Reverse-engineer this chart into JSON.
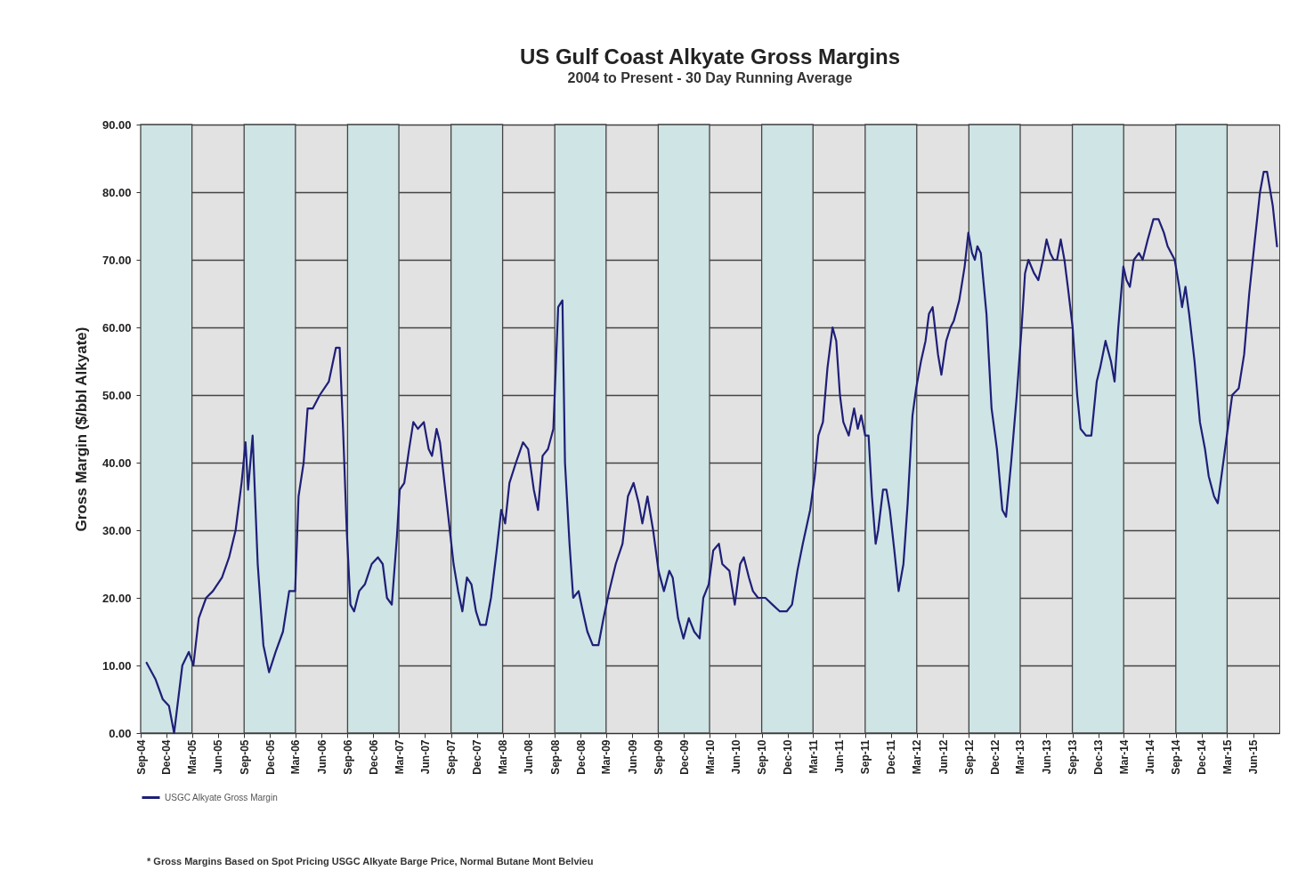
{
  "chart_data": {
    "type": "line",
    "title": "US Gulf Coast Alkyate Gross Margins",
    "subtitle": "2004 to Present - 30 Day Running Average",
    "ylabel": "Gross Margin ($/bbl Alkyate)",
    "annotations": [
      "* Gross Margins Based on Spot Pricing USGC Alkyate  Barge Price, Normal Butane Mont Belvieu"
    ],
    "x": [
      "2004-09-22",
      "2004-10-23",
      "2004-11-18",
      "2004-12-10",
      "2004-12-28",
      "2005-01-26",
      "2005-02-18",
      "2005-03-06",
      "2005-03-25",
      "2005-04-20",
      "2005-05-14",
      "2005-06-15",
      "2005-07-10",
      "2005-08-02",
      "2005-08-23",
      "2005-09-06",
      "2005-09-15",
      "2005-10-01",
      "2005-10-19",
      "2005-11-08",
      "2005-11-28",
      "2005-12-21",
      "2006-01-16",
      "2006-02-07",
      "2006-02-28",
      "2006-03-12",
      "2006-03-30",
      "2006-04-13",
      "2006-05-01",
      "2006-05-26",
      "2006-06-27",
      "2006-07-22",
      "2006-08-04",
      "2006-08-16",
      "2006-08-29",
      "2006-09-11",
      "2006-09-24",
      "2006-10-12",
      "2006-11-01",
      "2006-11-25",
      "2006-12-17",
      "2007-01-03",
      "2007-01-18",
      "2007-02-04",
      "2007-02-22",
      "2007-03-04",
      "2007-03-20",
      "2007-04-06",
      "2007-04-21",
      "2007-05-07",
      "2007-05-28",
      "2007-06-14",
      "2007-06-26",
      "2007-07-12",
      "2007-07-24",
      "2007-08-09",
      "2007-08-25",
      "2007-09-10",
      "2007-09-26",
      "2007-10-11",
      "2007-10-27",
      "2007-11-12",
      "2007-11-28",
      "2007-12-13",
      "2008-01-02",
      "2008-01-20",
      "2008-02-09",
      "2008-02-25",
      "2008-03-10",
      "2008-03-25",
      "2008-04-17",
      "2008-05-12",
      "2008-05-30",
      "2008-06-19",
      "2008-07-04",
      "2008-07-20",
      "2008-08-08",
      "2008-08-27",
      "2008-09-13",
      "2008-09-28",
      "2008-10-07",
      "2008-10-23",
      "2008-11-05",
      "2008-11-24",
      "2008-12-09",
      "2008-12-25",
      "2009-01-13",
      "2009-02-02",
      "2009-02-20",
      "2009-03-12",
      "2009-04-04",
      "2009-04-28",
      "2009-05-17",
      "2009-06-06",
      "2009-06-24",
      "2009-07-07",
      "2009-07-25",
      "2009-08-14",
      "2009-09-02",
      "2009-09-21",
      "2009-10-10",
      "2009-10-22",
      "2009-11-10",
      "2009-11-29",
      "2009-12-18",
      "2010-01-06",
      "2010-01-25",
      "2010-02-07",
      "2010-02-26",
      "2010-03-14",
      "2010-04-03",
      "2010-04-15",
      "2010-05-10",
      "2010-05-29",
      "2010-06-17",
      "2010-06-30",
      "2010-07-18",
      "2010-08-01",
      "2010-08-19",
      "2010-09-14",
      "2010-10-09",
      "2010-11-04",
      "2010-11-28",
      "2010-12-17",
      "2011-01-05",
      "2011-01-24",
      "2011-02-19",
      "2011-03-07",
      "2011-03-20",
      "2011-04-05",
      "2011-04-21",
      "2011-05-09",
      "2011-05-22",
      "2011-06-04",
      "2011-06-16",
      "2011-07-05",
      "2011-07-24",
      "2011-08-06",
      "2011-08-18",
      "2011-09-01",
      "2011-09-13",
      "2011-09-25",
      "2011-10-08",
      "2011-10-17",
      "2011-11-03",
      "2011-11-15",
      "2011-11-27",
      "2011-12-13",
      "2011-12-28",
      "2012-01-14",
      "2012-01-29",
      "2012-02-15",
      "2012-02-28",
      "2012-03-16",
      "2012-04-01",
      "2012-04-13",
      "2012-04-26",
      "2012-05-15",
      "2012-05-27",
      "2012-06-13",
      "2012-06-28",
      "2012-07-10",
      "2012-07-29",
      "2012-08-17",
      "2012-08-30",
      "2012-09-12",
      "2012-09-22",
      "2012-10-01",
      "2012-10-13",
      "2012-11-02",
      "2012-11-20",
      "2012-12-09",
      "2012-12-28",
      "2013-01-10",
      "2013-01-28",
      "2013-02-17",
      "2013-03-06",
      "2013-03-18",
      "2013-03-30",
      "2013-04-19",
      "2013-05-04",
      "2013-05-20",
      "2013-06-02",
      "2013-06-15",
      "2013-06-27",
      "2013-07-09",
      "2013-07-22",
      "2013-08-04",
      "2013-08-16",
      "2013-09-02",
      "2013-09-18",
      "2013-09-30",
      "2013-10-19",
      "2013-11-07",
      "2013-11-26",
      "2013-12-08",
      "2013-12-27",
      "2014-01-15",
      "2014-01-28",
      "2014-02-10",
      "2014-02-28",
      "2014-03-11",
      "2014-03-23",
      "2014-04-06",
      "2014-04-24",
      "2014-05-07",
      "2014-05-25",
      "2014-06-14",
      "2014-07-02",
      "2014-07-21",
      "2014-08-03",
      "2014-08-28",
      "2014-09-13",
      "2014-09-23",
      "2014-10-05",
      "2014-10-18",
      "2014-11-06",
      "2014-11-25",
      "2014-12-13",
      "2014-12-26",
      "2015-01-14",
      "2015-01-27",
      "2015-02-09",
      "2015-02-28",
      "2015-03-19",
      "2015-04-11",
      "2015-04-30",
      "2015-05-18",
      "2015-06-07",
      "2015-06-25",
      "2015-07-08",
      "2015-07-20",
      "2015-08-09",
      "2015-08-24"
    ],
    "series": [
      {
        "name": "USGC Alkyate Gross Margin",
        "color": "#1f1f78",
        "values": [
          10.4,
          8,
          5,
          4,
          0,
          10,
          12,
          10,
          17,
          20,
          21,
          23,
          26,
          30,
          37,
          43,
          36,
          44,
          25,
          13,
          9,
          12,
          15,
          21,
          21,
          35,
          40,
          48,
          48,
          50,
          52,
          57,
          57,
          45,
          30,
          19,
          18,
          21,
          22,
          25,
          26,
          25,
          20,
          19,
          29,
          36,
          37,
          42,
          46,
          45,
          46,
          42,
          41,
          45,
          43,
          37,
          31,
          25,
          21,
          18,
          23,
          22,
          18,
          16,
          16,
          20,
          27,
          33,
          31,
          37,
          40,
          43,
          42,
          36,
          33,
          41,
          42,
          45,
          63,
          64,
          40,
          28,
          20,
          21,
          18,
          15,
          13,
          13,
          17,
          21,
          25,
          28,
          35,
          37,
          34,
          31,
          35,
          30,
          24,
          21,
          24,
          23,
          17,
          14,
          17,
          15,
          14,
          20,
          22,
          27,
          28,
          25,
          24,
          19,
          25,
          26,
          23,
          21,
          20,
          20,
          19,
          18,
          18,
          19,
          24,
          28,
          33,
          38,
          44,
          46,
          54,
          60,
          58,
          50,
          46,
          44,
          48,
          45,
          47,
          44,
          44,
          35,
          28,
          30,
          36,
          36,
          33,
          27,
          21,
          25,
          34,
          47,
          51,
          55,
          58,
          62,
          63,
          56,
          53,
          58,
          60,
          61,
          64,
          69,
          74,
          71,
          70,
          72,
          71,
          62,
          48,
          42,
          33,
          32,
          40,
          50,
          60,
          68,
          70,
          68,
          67,
          70,
          73,
          71,
          70,
          70,
          73,
          70,
          66,
          60,
          50,
          45,
          44,
          44,
          52,
          54,
          58,
          55,
          52,
          60,
          69,
          67,
          66,
          70,
          71,
          70,
          73,
          76,
          76,
          74,
          72,
          70,
          66,
          63,
          66,
          62,
          55,
          46,
          42,
          38,
          35,
          34,
          38,
          44,
          50,
          51,
          56,
          65,
          73,
          80,
          83,
          83,
          78,
          72
        ]
      }
    ],
    "xlim": [
      "2004-09-01",
      "2015-09-01"
    ],
    "xticks": [
      {
        "value": "2004-09-01",
        "label": "Sep-04"
      },
      {
        "value": "2004-12-01",
        "label": "Dec-04"
      },
      {
        "value": "2005-03-01",
        "label": "Mar-05"
      },
      {
        "value": "2005-06-01",
        "label": "Jun-05"
      },
      {
        "value": "2005-09-01",
        "label": "Sep-05"
      },
      {
        "value": "2005-12-01",
        "label": "Dec-05"
      },
      {
        "value": "2006-03-01",
        "label": "Mar-06"
      },
      {
        "value": "2006-06-01",
        "label": "Jun-06"
      },
      {
        "value": "2006-09-01",
        "label": "Sep-06"
      },
      {
        "value": "2006-12-01",
        "label": "Dec-06"
      },
      {
        "value": "2007-03-01",
        "label": "Mar-07"
      },
      {
        "value": "2007-06-01",
        "label": "Jun-07"
      },
      {
        "value": "2007-09-01",
        "label": "Sep-07"
      },
      {
        "value": "2007-12-01",
        "label": "Dec-07"
      },
      {
        "value": "2008-03-01",
        "label": "Mar-08"
      },
      {
        "value": "2008-06-01",
        "label": "Jun-08"
      },
      {
        "value": "2008-09-01",
        "label": "Sep-08"
      },
      {
        "value": "2008-12-01",
        "label": "Dec-08"
      },
      {
        "value": "2009-03-01",
        "label": "Mar-09"
      },
      {
        "value": "2009-06-01",
        "label": "Jun-09"
      },
      {
        "value": "2009-09-01",
        "label": "Sep-09"
      },
      {
        "value": "2009-12-01",
        "label": "Dec-09"
      },
      {
        "value": "2010-03-01",
        "label": "Mar-10"
      },
      {
        "value": "2010-06-01",
        "label": "Jun-10"
      },
      {
        "value": "2010-09-01",
        "label": "Sep-10"
      },
      {
        "value": "2010-12-01",
        "label": "Dec-10"
      },
      {
        "value": "2011-03-01",
        "label": "Mar-11"
      },
      {
        "value": "2011-06-01",
        "label": "Jun-11"
      },
      {
        "value": "2011-09-01",
        "label": "Sep-11"
      },
      {
        "value": "2011-12-01",
        "label": "Dec-11"
      },
      {
        "value": "2012-03-01",
        "label": "Mar-12"
      },
      {
        "value": "2012-06-01",
        "label": "Jun-12"
      },
      {
        "value": "2012-09-01",
        "label": "Sep-12"
      },
      {
        "value": "2012-12-01",
        "label": "Dec-12"
      },
      {
        "value": "2013-03-01",
        "label": "Mar-13"
      },
      {
        "value": "2013-06-01",
        "label": "Jun-13"
      },
      {
        "value": "2013-09-01",
        "label": "Sep-13"
      },
      {
        "value": "2013-12-01",
        "label": "Dec-13"
      },
      {
        "value": "2014-03-01",
        "label": "Mar-14"
      },
      {
        "value": "2014-06-01",
        "label": "Jun-14"
      },
      {
        "value": "2014-09-01",
        "label": "Sep-14"
      },
      {
        "value": "2014-12-01",
        "label": "Dec-14"
      },
      {
        "value": "2015-03-01",
        "label": "Mar-15"
      },
      {
        "value": "2015-06-01",
        "label": "Jun-15"
      }
    ],
    "ylim": [
      0,
      90
    ],
    "yticks": [
      {
        "value": 0,
        "label": "0.00"
      },
      {
        "value": 10,
        "label": "10.00"
      },
      {
        "value": 20,
        "label": "20.00"
      },
      {
        "value": 30,
        "label": "30.00"
      },
      {
        "value": 40,
        "label": "40.00"
      },
      {
        "value": 50,
        "label": "50.00"
      },
      {
        "value": 60,
        "label": "60.00"
      },
      {
        "value": 70,
        "label": "70.00"
      },
      {
        "value": 80,
        "label": "80.00"
      },
      {
        "value": 90,
        "label": "90.00"
      }
    ],
    "bands": [
      {
        "axis": "x",
        "from": "2004-09-01",
        "to": "2005-03-01",
        "color": "#cfe4e4"
      },
      {
        "axis": "x",
        "from": "2005-09-01",
        "to": "2006-03-01",
        "color": "#cfe4e4"
      },
      {
        "axis": "x",
        "from": "2006-09-01",
        "to": "2007-03-01",
        "color": "#cfe4e4"
      },
      {
        "axis": "x",
        "from": "2007-09-01",
        "to": "2008-03-01",
        "color": "#cfe4e4"
      },
      {
        "axis": "x",
        "from": "2008-09-01",
        "to": "2009-03-01",
        "color": "#cfe4e4"
      },
      {
        "axis": "x",
        "from": "2009-09-01",
        "to": "2010-03-01",
        "color": "#cfe4e4"
      },
      {
        "axis": "x",
        "from": "2010-09-01",
        "to": "2011-03-01",
        "color": "#cfe4e4"
      },
      {
        "axis": "x",
        "from": "2011-09-01",
        "to": "2012-03-01",
        "color": "#cfe4e4"
      },
      {
        "axis": "x",
        "from": "2012-09-01",
        "to": "2013-03-01",
        "color": "#cfe4e4"
      },
      {
        "axis": "x",
        "from": "2013-09-01",
        "to": "2014-03-01",
        "color": "#cfe4e4"
      },
      {
        "axis": "x",
        "from": "2014-09-01",
        "to": "2015-03-01",
        "color": "#cfe4e4"
      }
    ],
    "grid": "y",
    "legend": "bottom"
  }
}
